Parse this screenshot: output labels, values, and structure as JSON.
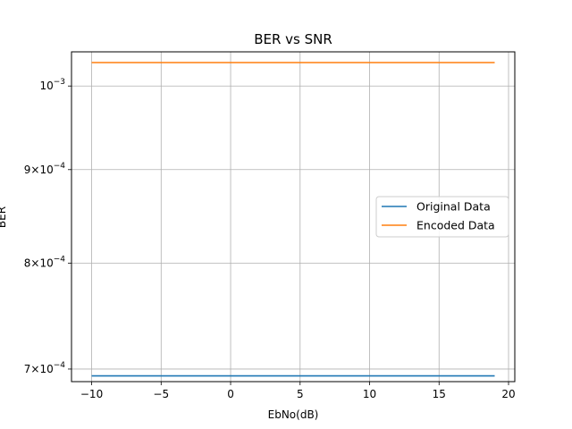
{
  "chart_data": {
    "type": "line",
    "title": "BER vs SNR",
    "xlabel": "EbNo(dB)",
    "ylabel": "BER",
    "yscale": "log",
    "xlim": [
      -11.45,
      20.45
    ],
    "ylim": [
      0.000689,
      0.001044
    ],
    "grid": true,
    "legend_placement": "center-right",
    "x": [
      -10,
      19
    ],
    "series": [
      {
        "name": "Original Data",
        "color": "#1f77b4",
        "values": [
          0.000694,
          0.000694
        ]
      },
      {
        "name": "Encoded Data",
        "color": "#ff7f0e",
        "values": [
          0.00103,
          0.00103
        ]
      }
    ],
    "x_ticks": [
      {
        "value": -10,
        "label": "−10"
      },
      {
        "value": -5,
        "label": "−5"
      },
      {
        "value": 0,
        "label": "0"
      },
      {
        "value": 5,
        "label": "5"
      },
      {
        "value": 10,
        "label": "10"
      },
      {
        "value": 15,
        "label": "15"
      },
      {
        "value": 20,
        "label": "20"
      }
    ],
    "y_ticks": [
      {
        "value": 0.0007,
        "mantissa": "7",
        "base": "10",
        "exponent": "−4"
      },
      {
        "value": 0.0008,
        "mantissa": "8",
        "base": "10",
        "exponent": "−4"
      },
      {
        "value": 0.0009,
        "mantissa": "9",
        "base": "10",
        "exponent": "−4"
      },
      {
        "value": 0.001,
        "mantissa": "",
        "base": "10",
        "exponent": "−3"
      }
    ]
  }
}
